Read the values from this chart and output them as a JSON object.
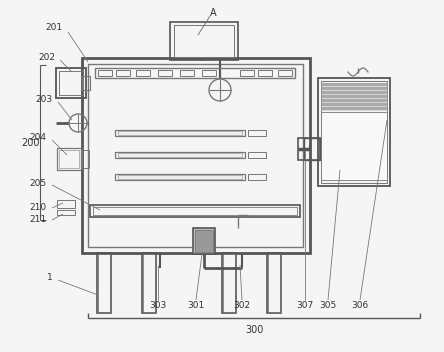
{
  "bg_color": "#f5f5f5",
  "lc": "#999999",
  "dc": "#555555",
  "mc": "#777777",
  "figsize": [
    4.44,
    3.52
  ],
  "dpi": 100
}
